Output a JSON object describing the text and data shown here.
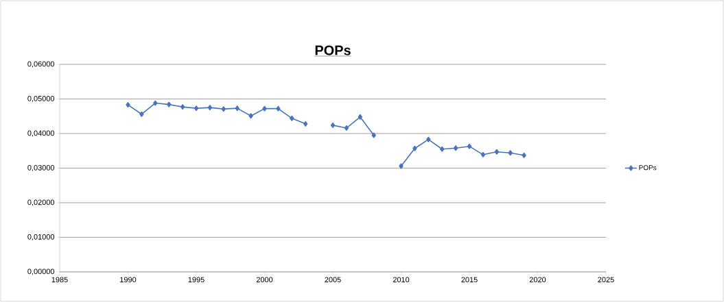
{
  "chart_data": {
    "type": "line",
    "title": "POPs",
    "x": [
      1990,
      1991,
      1992,
      1993,
      1994,
      1995,
      1996,
      1997,
      1998,
      1999,
      2000,
      2001,
      2002,
      2003,
      2004,
      2005,
      2006,
      2007,
      2008,
      2009,
      2010,
      2011,
      2012,
      2013,
      2014,
      2015,
      2016,
      2017,
      2018,
      2019
    ],
    "series": [
      {
        "name": "POPs",
        "color": "#4a74b8",
        "values": [
          0.0483,
          0.0456,
          0.0488,
          0.0484,
          0.0477,
          0.0473,
          0.0475,
          0.0471,
          0.0473,
          0.0451,
          0.0472,
          0.0472,
          0.0444,
          0.0428,
          null,
          0.0424,
          0.0416,
          0.0448,
          0.0395,
          null,
          0.0306,
          0.0357,
          0.0383,
          0.0355,
          0.0358,
          0.0363,
          0.0339,
          0.0347,
          0.0344,
          0.0337
        ]
      }
    ],
    "xlim": [
      1985,
      2025
    ],
    "xticks": [
      1985,
      1990,
      1995,
      2000,
      2005,
      2010,
      2015,
      2020,
      2025
    ],
    "ylim": [
      0,
      0.06
    ],
    "yticks": [
      {
        "value": 0,
        "label": "0,00000"
      },
      {
        "value": 0.01,
        "label": "0,01000"
      },
      {
        "value": 0.02,
        "label": "0,02000"
      },
      {
        "value": 0.03,
        "label": "0,03000"
      },
      {
        "value": 0.04,
        "label": "0,04000"
      },
      {
        "value": 0.05,
        "label": "0,05000"
      },
      {
        "value": 0.06,
        "label": "0,06000"
      }
    ],
    "grid": "y",
    "legend": "right",
    "marker": "diamond",
    "line_style": "solid"
  }
}
